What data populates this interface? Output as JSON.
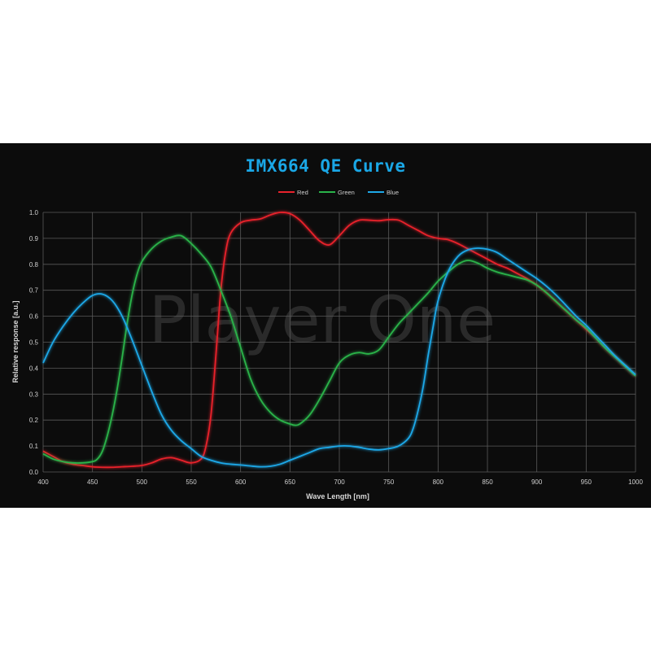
{
  "chart_data": {
    "type": "line",
    "title": "IMX664 QE Curve",
    "xlabel": "Wave Length [nm]",
    "ylabel": "Relative response [a.u.]",
    "xlim": [
      400,
      1000
    ],
    "ylim": [
      0,
      1.0
    ],
    "xticks": [
      "400",
      "450",
      "500",
      "550",
      "600",
      "650",
      "700",
      "750",
      "800",
      "850",
      "900",
      "950",
      "1000"
    ],
    "yticks": [
      "0.0",
      "0.1",
      "0.2",
      "0.3",
      "0.4",
      "0.5",
      "0.6",
      "0.7",
      "0.8",
      "0.9",
      "1.0"
    ],
    "grid": true,
    "legend_position": "top-center",
    "watermark": "Player One",
    "colors": {
      "Red": "#e8222c",
      "Green": "#2ab34a",
      "Blue": "#1ea8e8"
    },
    "series": [
      {
        "name": "Red",
        "x": [
          400,
          410,
          420,
          430,
          440,
          450,
          460,
          470,
          480,
          490,
          500,
          510,
          520,
          530,
          540,
          550,
          560,
          565,
          570,
          575,
          580,
          585,
          590,
          600,
          610,
          620,
          630,
          640,
          650,
          660,
          670,
          680,
          690,
          700,
          710,
          720,
          730,
          740,
          750,
          760,
          770,
          780,
          790,
          800,
          810,
          820,
          830,
          840,
          850,
          860,
          870,
          880,
          890,
          900,
          910,
          920,
          930,
          940,
          950,
          960,
          970,
          980,
          990,
          1000
        ],
        "y": [
          0.08,
          0.06,
          0.04,
          0.03,
          0.025,
          0.02,
          0.018,
          0.018,
          0.02,
          0.022,
          0.025,
          0.035,
          0.05,
          0.055,
          0.045,
          0.035,
          0.05,
          0.1,
          0.22,
          0.45,
          0.7,
          0.85,
          0.92,
          0.96,
          0.97,
          0.975,
          0.99,
          1.0,
          0.995,
          0.97,
          0.93,
          0.89,
          0.875,
          0.91,
          0.95,
          0.97,
          0.97,
          0.968,
          0.972,
          0.97,
          0.95,
          0.93,
          0.91,
          0.9,
          0.895,
          0.88,
          0.86,
          0.84,
          0.82,
          0.8,
          0.785,
          0.765,
          0.745,
          0.72,
          0.69,
          0.655,
          0.62,
          0.585,
          0.55,
          0.515,
          0.475,
          0.44,
          0.405,
          0.37
        ]
      },
      {
        "name": "Green",
        "x": [
          400,
          410,
          420,
          430,
          440,
          450,
          455,
          460,
          465,
          470,
          475,
          480,
          485,
          490,
          495,
          500,
          510,
          520,
          530,
          540,
          550,
          560,
          570,
          580,
          590,
          600,
          610,
          620,
          630,
          640,
          650,
          655,
          660,
          670,
          680,
          690,
          700,
          710,
          720,
          730,
          740,
          750,
          760,
          770,
          780,
          790,
          800,
          810,
          820,
          830,
          840,
          850,
          860,
          870,
          880,
          890,
          900,
          910,
          920,
          930,
          940,
          950,
          960,
          970,
          980,
          990,
          1000
        ],
        "y": [
          0.07,
          0.05,
          0.04,
          0.035,
          0.035,
          0.04,
          0.05,
          0.08,
          0.14,
          0.22,
          0.32,
          0.44,
          0.57,
          0.68,
          0.76,
          0.81,
          0.86,
          0.89,
          0.905,
          0.91,
          0.88,
          0.84,
          0.79,
          0.7,
          0.6,
          0.48,
          0.36,
          0.28,
          0.23,
          0.2,
          0.185,
          0.18,
          0.185,
          0.22,
          0.28,
          0.35,
          0.42,
          0.45,
          0.46,
          0.455,
          0.47,
          0.52,
          0.57,
          0.61,
          0.65,
          0.69,
          0.735,
          0.77,
          0.8,
          0.815,
          0.805,
          0.785,
          0.77,
          0.76,
          0.75,
          0.74,
          0.72,
          0.69,
          0.655,
          0.62,
          0.585,
          0.555,
          0.515,
          0.475,
          0.44,
          0.405,
          0.37
        ]
      },
      {
        "name": "Blue",
        "x": [
          400,
          410,
          420,
          430,
          440,
          450,
          460,
          470,
          480,
          490,
          500,
          510,
          520,
          530,
          540,
          550,
          560,
          570,
          580,
          590,
          600,
          610,
          620,
          630,
          640,
          650,
          660,
          670,
          680,
          690,
          700,
          710,
          720,
          730,
          740,
          750,
          760,
          770,
          775,
          780,
          785,
          790,
          795,
          800,
          810,
          820,
          830,
          840,
          850,
          860,
          870,
          880,
          890,
          900,
          910,
          920,
          930,
          940,
          950,
          960,
          970,
          980,
          990,
          1000
        ],
        "y": [
          0.42,
          0.5,
          0.56,
          0.61,
          0.65,
          0.68,
          0.685,
          0.66,
          0.6,
          0.51,
          0.41,
          0.31,
          0.22,
          0.16,
          0.12,
          0.09,
          0.06,
          0.045,
          0.035,
          0.03,
          0.027,
          0.023,
          0.02,
          0.022,
          0.03,
          0.045,
          0.06,
          0.075,
          0.09,
          0.095,
          0.1,
          0.1,
          0.095,
          0.088,
          0.085,
          0.09,
          0.1,
          0.13,
          0.17,
          0.24,
          0.33,
          0.45,
          0.56,
          0.66,
          0.77,
          0.83,
          0.855,
          0.862,
          0.858,
          0.845,
          0.82,
          0.795,
          0.77,
          0.745,
          0.715,
          0.68,
          0.64,
          0.6,
          0.565,
          0.525,
          0.485,
          0.445,
          0.41,
          0.375
        ]
      }
    ]
  }
}
